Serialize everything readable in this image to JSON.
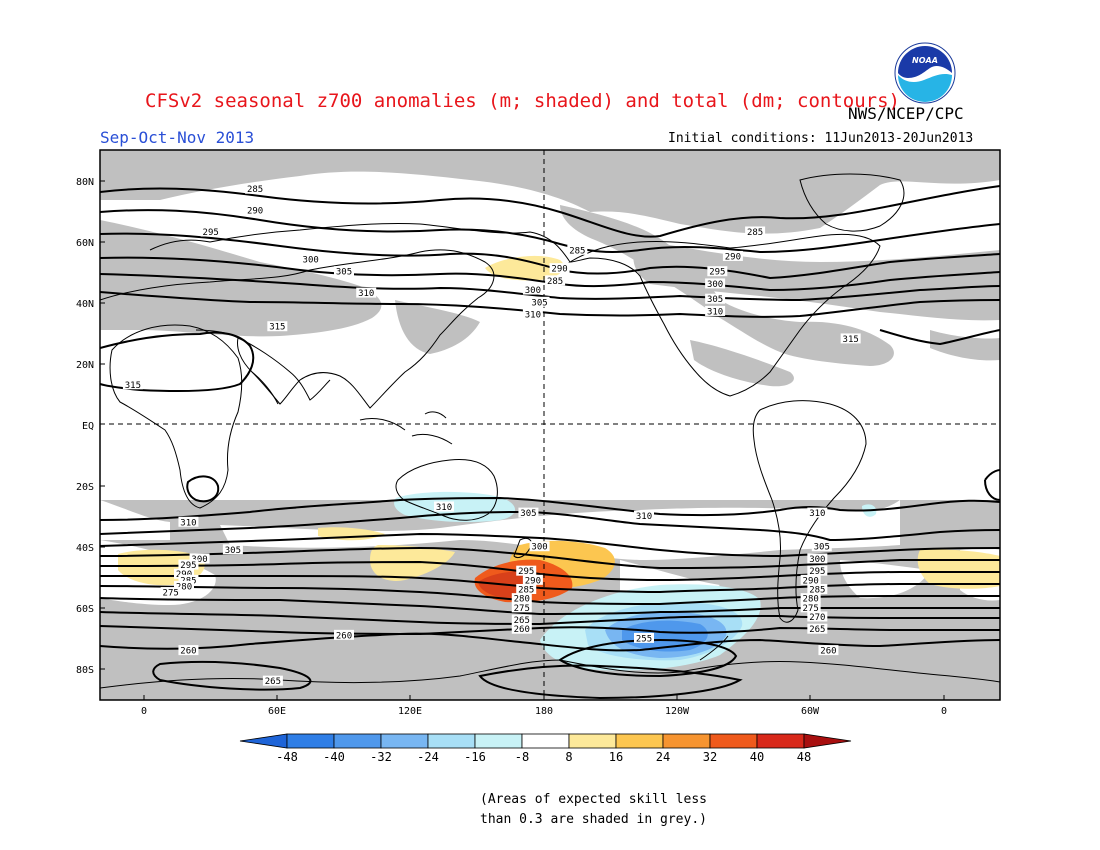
{
  "title": "CFSv2 seasonal z700 anomalies (m; shaded) and total (dm; contours)",
  "organization": "NWS/NCEP/CPC",
  "logo_text": "NOAA",
  "period": "Sep-Oct-Nov 2013",
  "initial_conditions": "Initial conditions: 11Jun2013-20Jun2013",
  "lat_labels": [
    "80N",
    "60N",
    "40N",
    "20N",
    "EQ",
    "20S",
    "40S",
    "60S",
    "80S"
  ],
  "lon_labels": [
    "0",
    "60E",
    "120E",
    "180",
    "120W",
    "60W",
    "0"
  ],
  "colorbar": {
    "labels": [
      "-48",
      "-40",
      "-32",
      "-24",
      "-16",
      "-8",
      "8",
      "16",
      "24",
      "32",
      "40",
      "48"
    ],
    "colors": [
      "#1e64d8",
      "#2f7ee6",
      "#4f98ec",
      "#78b6f2",
      "#a8dff6",
      "#c8f2f6",
      "#ffffff",
      "#fde99a",
      "#fcc650",
      "#f69430",
      "#ef5a1c",
      "#d8281a",
      "#a80f0f"
    ]
  },
  "skill_note": "(Areas of expected skill less\nthan 0.3 are shaded in grey.)",
  "contour_labels": [
    {
      "text": "285",
      "lon": 50,
      "lat": 77
    },
    {
      "text": "290",
      "lon": 50,
      "lat": 70
    },
    {
      "text": "295",
      "lon": 30,
      "lat": 63
    },
    {
      "text": "300",
      "lon": 75,
      "lat": 54
    },
    {
      "text": "305",
      "lon": 90,
      "lat": 50
    },
    {
      "text": "310",
      "lon": 100,
      "lat": 43
    },
    {
      "text": "315",
      "lon": 60,
      "lat": 32
    },
    {
      "text": "315",
      "lon": -5,
      "lat": 13
    },
    {
      "text": "285",
      "lon": 195,
      "lat": 57
    },
    {
      "text": "290",
      "lon": 187,
      "lat": 51
    },
    {
      "text": "285",
      "lon": 185,
      "lat": 47
    },
    {
      "text": "300",
      "lon": 175,
      "lat": 44
    },
    {
      "text": "305",
      "lon": 178,
      "lat": 40
    },
    {
      "text": "310",
      "lon": 175,
      "lat": 36
    },
    {
      "text": "285",
      "lon": 275,
      "lat": 63
    },
    {
      "text": "290",
      "lon": 265,
      "lat": 55
    },
    {
      "text": "295",
      "lon": 258,
      "lat": 50
    },
    {
      "text": "300",
      "lon": 257,
      "lat": 46
    },
    {
      "text": "305",
      "lon": 257,
      "lat": 41
    },
    {
      "text": "310",
      "lon": 257,
      "lat": 37
    },
    {
      "text": "315",
      "lon": 318,
      "lat": 28
    },
    {
      "text": "310",
      "lon": 135,
      "lat": -27
    },
    {
      "text": "305",
      "lon": 173,
      "lat": -29
    },
    {
      "text": "310",
      "lon": 225,
      "lat": -30
    },
    {
      "text": "310",
      "lon": 303,
      "lat": -29
    },
    {
      "text": "310",
      "lon": 20,
      "lat": -32
    },
    {
      "text": "305",
      "lon": 40,
      "lat": -41
    },
    {
      "text": "300",
      "lon": 25,
      "lat": -44
    },
    {
      "text": "295",
      "lon": 20,
      "lat": -46
    },
    {
      "text": "290",
      "lon": 18,
      "lat": -49
    },
    {
      "text": "285",
      "lon": 20,
      "lat": -51
    },
    {
      "text": "280",
      "lon": 18,
      "lat": -53
    },
    {
      "text": "275",
      "lon": 12,
      "lat": -55
    },
    {
      "text": "300",
      "lon": 178,
      "lat": -40
    },
    {
      "text": "295",
      "lon": 172,
      "lat": -48
    },
    {
      "text": "290",
      "lon": 175,
      "lat": -51
    },
    {
      "text": "285",
      "lon": 172,
      "lat": -54
    },
    {
      "text": "280",
      "lon": 170,
      "lat": -57
    },
    {
      "text": "275",
      "lon": 170,
      "lat": -60
    },
    {
      "text": "265",
      "lon": 170,
      "lat": -64
    },
    {
      "text": "260",
      "lon": 170,
      "lat": -67
    },
    {
      "text": "305",
      "lon": 305,
      "lat": -40
    },
    {
      "text": "300",
      "lon": 303,
      "lat": -44
    },
    {
      "text": "295",
      "lon": 303,
      "lat": -48
    },
    {
      "text": "290",
      "lon": 300,
      "lat": -51
    },
    {
      "text": "285",
      "lon": 303,
      "lat": -54
    },
    {
      "text": "280",
      "lon": 300,
      "lat": -57
    },
    {
      "text": "275",
      "lon": 300,
      "lat": -60
    },
    {
      "text": "270",
      "lon": 303,
      "lat": -63
    },
    {
      "text": "265",
      "lon": 303,
      "lat": -67
    },
    {
      "text": "260",
      "lon": 90,
      "lat": -69
    },
    {
      "text": "260",
      "lon": 20,
      "lat": -74
    },
    {
      "text": "255",
      "lon": 225,
      "lat": -70
    },
    {
      "text": "260",
      "lon": 308,
      "lat": -74
    },
    {
      "text": "265",
      "lon": 58,
      "lat": -84
    }
  ]
}
